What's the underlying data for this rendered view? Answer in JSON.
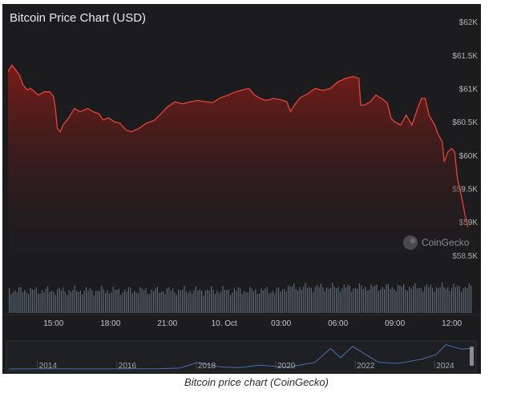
{
  "chart_data": {
    "type": "area",
    "title": "Bitcoin Price Chart (USD)",
    "currency": "USD",
    "y_ticks": [
      "$62K",
      "$61.5K",
      "$61K",
      "$60.5K",
      "$60K",
      "$59.5K",
      "$59K",
      "$58.5K"
    ],
    "y_tick_values": [
      62000,
      61500,
      61000,
      60500,
      60000,
      59500,
      59000,
      58500
    ],
    "ylim": [
      58450,
      62050
    ],
    "x_ticks": [
      "15:00",
      "18:00",
      "21:00",
      "10. Oct",
      "03:00",
      "06:00",
      "09:00",
      "12:00"
    ],
    "x_tick_hours": [
      15,
      18,
      21,
      24,
      27,
      30,
      33,
      36
    ],
    "xlim_hours": [
      12.6,
      37.2
    ],
    "series": [
      {
        "values": [
          [
            12.6,
            61250
          ],
          [
            12.8,
            61350
          ],
          [
            13.0,
            61280
          ],
          [
            13.2,
            61200
          ],
          [
            13.4,
            61050
          ],
          [
            13.6,
            60980
          ],
          [
            13.8,
            61000
          ],
          [
            14.0,
            60950
          ],
          [
            14.2,
            60900
          ],
          [
            14.5,
            60950
          ],
          [
            14.8,
            60950
          ],
          [
            15.0,
            60880
          ],
          [
            15.1,
            60700
          ],
          [
            15.2,
            60400
          ],
          [
            15.35,
            60350
          ],
          [
            15.5,
            60450
          ],
          [
            15.8,
            60560
          ],
          [
            16.1,
            60700
          ],
          [
            16.4,
            60650
          ],
          [
            16.8,
            60700
          ],
          [
            17.1,
            60650
          ],
          [
            17.4,
            60620
          ],
          [
            17.6,
            60530
          ],
          [
            17.9,
            60560
          ],
          [
            18.2,
            60500
          ],
          [
            18.5,
            60480
          ],
          [
            18.8,
            60380
          ],
          [
            19.1,
            60350
          ],
          [
            19.5,
            60400
          ],
          [
            19.9,
            60480
          ],
          [
            20.3,
            60520
          ],
          [
            20.6,
            60600
          ],
          [
            21.0,
            60720
          ],
          [
            21.4,
            60800
          ],
          [
            21.8,
            60770
          ],
          [
            22.2,
            60800
          ],
          [
            22.6,
            60820
          ],
          [
            23.0,
            60800
          ],
          [
            23.4,
            60790
          ],
          [
            23.8,
            60860
          ],
          [
            24.2,
            60900
          ],
          [
            24.6,
            60950
          ],
          [
            25.0,
            60980
          ],
          [
            25.3,
            61000
          ],
          [
            25.6,
            60900
          ],
          [
            25.9,
            60850
          ],
          [
            26.2,
            60820
          ],
          [
            26.6,
            60850
          ],
          [
            27.0,
            60830
          ],
          [
            27.3,
            60800
          ],
          [
            27.5,
            60650
          ],
          [
            27.7,
            60750
          ],
          [
            28.0,
            60860
          ],
          [
            28.4,
            60920
          ],
          [
            28.8,
            61000
          ],
          [
            29.2,
            60970
          ],
          [
            29.6,
            61000
          ],
          [
            30.0,
            61100
          ],
          [
            30.4,
            61150
          ],
          [
            30.8,
            61180
          ],
          [
            31.1,
            61150
          ],
          [
            31.2,
            60750
          ],
          [
            31.4,
            60750
          ],
          [
            31.7,
            60800
          ],
          [
            32.0,
            60900
          ],
          [
            32.3,
            60850
          ],
          [
            32.6,
            60780
          ],
          [
            32.8,
            60550
          ],
          [
            33.0,
            60500
          ],
          [
            33.3,
            60450
          ],
          [
            33.6,
            60600
          ],
          [
            33.9,
            60450
          ],
          [
            34.2,
            60700
          ],
          [
            34.4,
            60850
          ],
          [
            34.6,
            60850
          ],
          [
            34.8,
            60600
          ],
          [
            35.1,
            60450
          ],
          [
            35.3,
            60300
          ],
          [
            35.5,
            60200
          ],
          [
            35.6,
            59900
          ],
          [
            35.8,
            60050
          ],
          [
            36.0,
            60100
          ],
          [
            36.15,
            60050
          ],
          [
            36.3,
            59650
          ],
          [
            36.5,
            59400
          ],
          [
            36.7,
            59100
          ],
          [
            36.85,
            58920
          ]
        ]
      }
    ],
    "line_color": "#e8433a",
    "fill_color_top": "#6e1a17",
    "panel_background": "#1c1c1e",
    "grid": false,
    "volume_bar_color": "#5d6a78",
    "watermark": "CoinGecko",
    "navigator": {
      "ticks": [
        "2014",
        "2016",
        "2018",
        "2020",
        "2022",
        "2024"
      ],
      "tick_years": [
        2014,
        2016,
        2018,
        2020,
        2022,
        2024
      ],
      "xlim_years": [
        2013.2,
        2024.9
      ],
      "line_color": "#4a6fb8",
      "series_btc": [
        [
          2013.2,
          100
        ],
        [
          2014.0,
          600
        ],
        [
          2015.0,
          250
        ],
        [
          2016.0,
          430
        ],
        [
          2017.0,
          1000
        ],
        [
          2017.5,
          2500
        ],
        [
          2017.95,
          19000
        ],
        [
          2018.5,
          6500
        ],
        [
          2019.0,
          3700
        ],
        [
          2019.5,
          11000
        ],
        [
          2020.2,
          5000
        ],
        [
          2020.9,
          19000
        ],
        [
          2021.3,
          60000
        ],
        [
          2021.55,
          33000
        ],
        [
          2021.85,
          66000
        ],
        [
          2022.5,
          20000
        ],
        [
          2023.0,
          16500
        ],
        [
          2023.6,
          29000
        ],
        [
          2023.95,
          42000
        ],
        [
          2024.2,
          71000
        ],
        [
          2024.6,
          58000
        ],
        [
          2024.9,
          61000
        ]
      ]
    }
  },
  "caption": "Bitcoin price chart (CoinGecko)"
}
